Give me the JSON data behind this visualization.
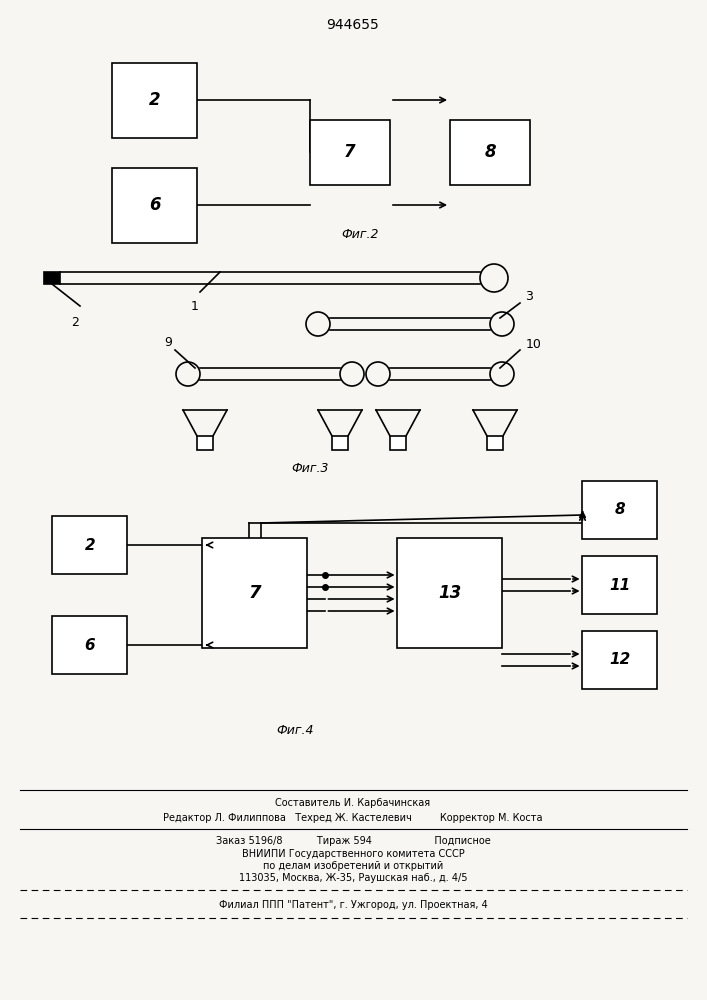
{
  "title": "944655",
  "bg": "#f8f6f2",
  "fig2_label": "Фиг.2",
  "fig3_label": "Фиг.3",
  "fig4_label": "Фиг.4",
  "footer_line1": "Составитель И. Карбачинская",
  "footer_line2": "Редактор Л. Филиппова   Техред Ж. Кастелевич         Корректор М. Коста",
  "footer_line3": "Заказ 5196/8           Тираж 594                    Подписное",
  "footer_line4": "ВНИИПИ Государственного комитета СССР",
  "footer_line5": "по делам изобретений и открытий",
  "footer_line6": "113035, Москва, Ж-35, Раушская наб., д. 4/5",
  "footer_line7": "Филиал ППП \"Патент\", г. Ужгород, ул. Проектная, 4"
}
